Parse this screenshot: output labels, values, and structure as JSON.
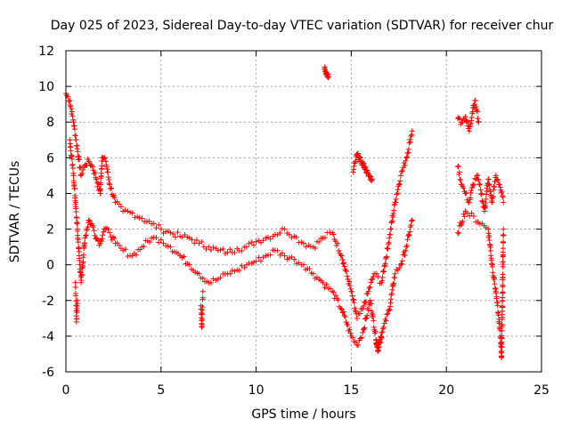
{
  "chart_data": {
    "type": "scatter",
    "title": "Day 025 of 2023, Sidereal Day-to-day VTEC variation (SDTVAR) for receiver chur",
    "xlabel": "GPS time / hours",
    "ylabel": "SDTVAR / TECUs",
    "xlim": [
      0,
      25
    ],
    "ylim": [
      -6,
      12
    ],
    "xticks": [
      0,
      5,
      10,
      15,
      20,
      25
    ],
    "yticks": [
      -6,
      -4,
      -2,
      0,
      2,
      4,
      6,
      8,
      10,
      12
    ],
    "x_tick_labels": [
      "0",
      "5",
      "10",
      "15",
      "20",
      "25"
    ],
    "y_tick_labels": [
      "-6",
      "-4",
      "-2",
      "0",
      "2",
      "4",
      "6",
      "8",
      "10",
      "12"
    ],
    "grid": true,
    "marker": "+",
    "color": "#ff0000",
    "series": [
      {
        "name": "main-upper",
        "points": [
          [
            0,
            9.6
          ],
          [
            0.2,
            9.2
          ],
          [
            0.4,
            8
          ],
          [
            0.6,
            6.5
          ],
          [
            0.8,
            5
          ],
          [
            1.0,
            5.6
          ],
          [
            1.2,
            5.8
          ],
          [
            1.4,
            5.5
          ],
          [
            1.6,
            4.8
          ],
          [
            1.8,
            4.0
          ],
          [
            1.9,
            6.0
          ],
          [
            2.1,
            5.8
          ],
          [
            2.3,
            4.5
          ],
          [
            2.6,
            3.5
          ],
          [
            3.0,
            3.0
          ],
          [
            3.5,
            2.9
          ],
          [
            4.0,
            2.6
          ],
          [
            4.5,
            2.3
          ],
          [
            5.0,
            2.0
          ],
          [
            5.5,
            1.8
          ],
          [
            6.0,
            1.6
          ],
          [
            6.5,
            1.5
          ],
          [
            7.0,
            1.2
          ],
          [
            7.5,
            1.0
          ],
          [
            8.0,
            0.8
          ],
          [
            8.5,
            0.7
          ],
          [
            9.0,
            0.9
          ],
          [
            9.5,
            1.0
          ],
          [
            10.0,
            1.3
          ],
          [
            10.5,
            1.5
          ],
          [
            11.0,
            1.7
          ],
          [
            11.5,
            2.0
          ],
          [
            12.0,
            1.6
          ],
          [
            12.5,
            1.2
          ],
          [
            13.0,
            1.0
          ],
          [
            13.5,
            1.5
          ],
          [
            14.0,
            1.8
          ],
          [
            14.5,
            0.5
          ],
          [
            15.0,
            -1.5
          ],
          [
            15.3,
            -3.0
          ],
          [
            15.6,
            -2.5
          ],
          [
            15.9,
            -1.5
          ],
          [
            16.2,
            -0.5
          ],
          [
            16.6,
            -1.0
          ],
          [
            17.0,
            1.5
          ],
          [
            17.3,
            3.5
          ],
          [
            17.6,
            5.0
          ],
          [
            17.9,
            6.0
          ],
          [
            18.2,
            7.5
          ]
        ]
      },
      {
        "name": "main-lower",
        "points": [
          [
            0.2,
            7.0
          ],
          [
            0.4,
            5.0
          ],
          [
            0.6,
            2.0
          ],
          [
            0.8,
            -1.0
          ],
          [
            1.0,
            1.5
          ],
          [
            1.2,
            2.5
          ],
          [
            1.4,
            2.2
          ],
          [
            1.6,
            1.5
          ],
          [
            1.8,
            1.2
          ],
          [
            2.0,
            2.0
          ],
          [
            2.3,
            1.8
          ],
          [
            2.6,
            1.2
          ],
          [
            3.0,
            0.8
          ],
          [
            3.5,
            0.5
          ],
          [
            4.0,
            1.0
          ],
          [
            4.5,
            1.5
          ],
          [
            5.0,
            1.4
          ],
          [
            5.5,
            1.0
          ],
          [
            6.0,
            0.5
          ],
          [
            6.5,
            0.0
          ],
          [
            7.0,
            -0.5
          ],
          [
            7.5,
            -1.0
          ],
          [
            8.0,
            -0.8
          ],
          [
            8.5,
            -0.5
          ],
          [
            9.0,
            -0.3
          ],
          [
            9.5,
            0.0
          ],
          [
            10.0,
            0.2
          ],
          [
            10.5,
            0.5
          ],
          [
            11.0,
            0.8
          ],
          [
            11.5,
            0.5
          ],
          [
            12.0,
            0.3
          ],
          [
            12.5,
            0.0
          ],
          [
            13.0,
            -0.5
          ],
          [
            13.5,
            -1.0
          ],
          [
            14.0,
            -1.5
          ],
          [
            14.5,
            -2.5
          ],
          [
            15.0,
            -4.0
          ],
          [
            15.3,
            -4.5
          ],
          [
            15.6,
            -3.8
          ],
          [
            16.0,
            -2.0
          ],
          [
            16.4,
            -4.8
          ],
          [
            16.7,
            -3.5
          ],
          [
            17.0,
            -2.5
          ],
          [
            17.3,
            -0.5
          ],
          [
            17.6,
            0.0
          ],
          [
            17.9,
            1.0
          ],
          [
            18.2,
            2.5
          ]
        ]
      },
      {
        "name": "dips",
        "points": [
          [
            0.5,
            -1.0
          ],
          [
            0.55,
            -3.2
          ],
          [
            0.6,
            -2.0
          ],
          [
            7.1,
            -2.3
          ],
          [
            7.15,
            -3.5
          ],
          [
            7.2,
            -1.5
          ],
          [
            16.3,
            -4.2
          ],
          [
            16.4,
            -4.8
          ],
          [
            16.6,
            -3.8
          ]
        ]
      },
      {
        "name": "upper-clusters",
        "points": [
          [
            13.6,
            11.0
          ],
          [
            13.7,
            10.7
          ],
          [
            13.8,
            10.5
          ],
          [
            15.1,
            5.2
          ],
          [
            15.3,
            6.2
          ],
          [
            15.5,
            5.8
          ],
          [
            15.7,
            5.5
          ],
          [
            15.9,
            5.0
          ],
          [
            16.1,
            4.8
          ]
        ]
      },
      {
        "name": "late-segment",
        "points": [
          [
            20.6,
            8.2
          ],
          [
            20.8,
            8.0
          ],
          [
            21.0,
            8.3
          ],
          [
            21.2,
            7.5
          ],
          [
            21.4,
            8.8
          ],
          [
            21.5,
            9.2
          ],
          [
            21.7,
            8.0
          ],
          [
            20.6,
            5.5
          ],
          [
            20.8,
            4.5
          ],
          [
            21.0,
            4.0
          ],
          [
            21.2,
            3.5
          ],
          [
            21.4,
            4.5
          ],
          [
            21.6,
            5.0
          ],
          [
            21.8,
            4.2
          ],
          [
            22.0,
            3.0
          ],
          [
            22.2,
            4.8
          ],
          [
            22.4,
            3.5
          ],
          [
            22.6,
            5.0
          ],
          [
            22.8,
            4.5
          ],
          [
            23.0,
            3.5
          ],
          [
            20.6,
            1.8
          ],
          [
            21.0,
            3.0
          ],
          [
            22.2,
            2.0
          ],
          [
            22.4,
            0.0
          ],
          [
            22.6,
            -1.5
          ],
          [
            22.8,
            -3.5
          ],
          [
            22.9,
            -5.2
          ],
          [
            23.0,
            2.0
          ]
        ]
      }
    ]
  }
}
